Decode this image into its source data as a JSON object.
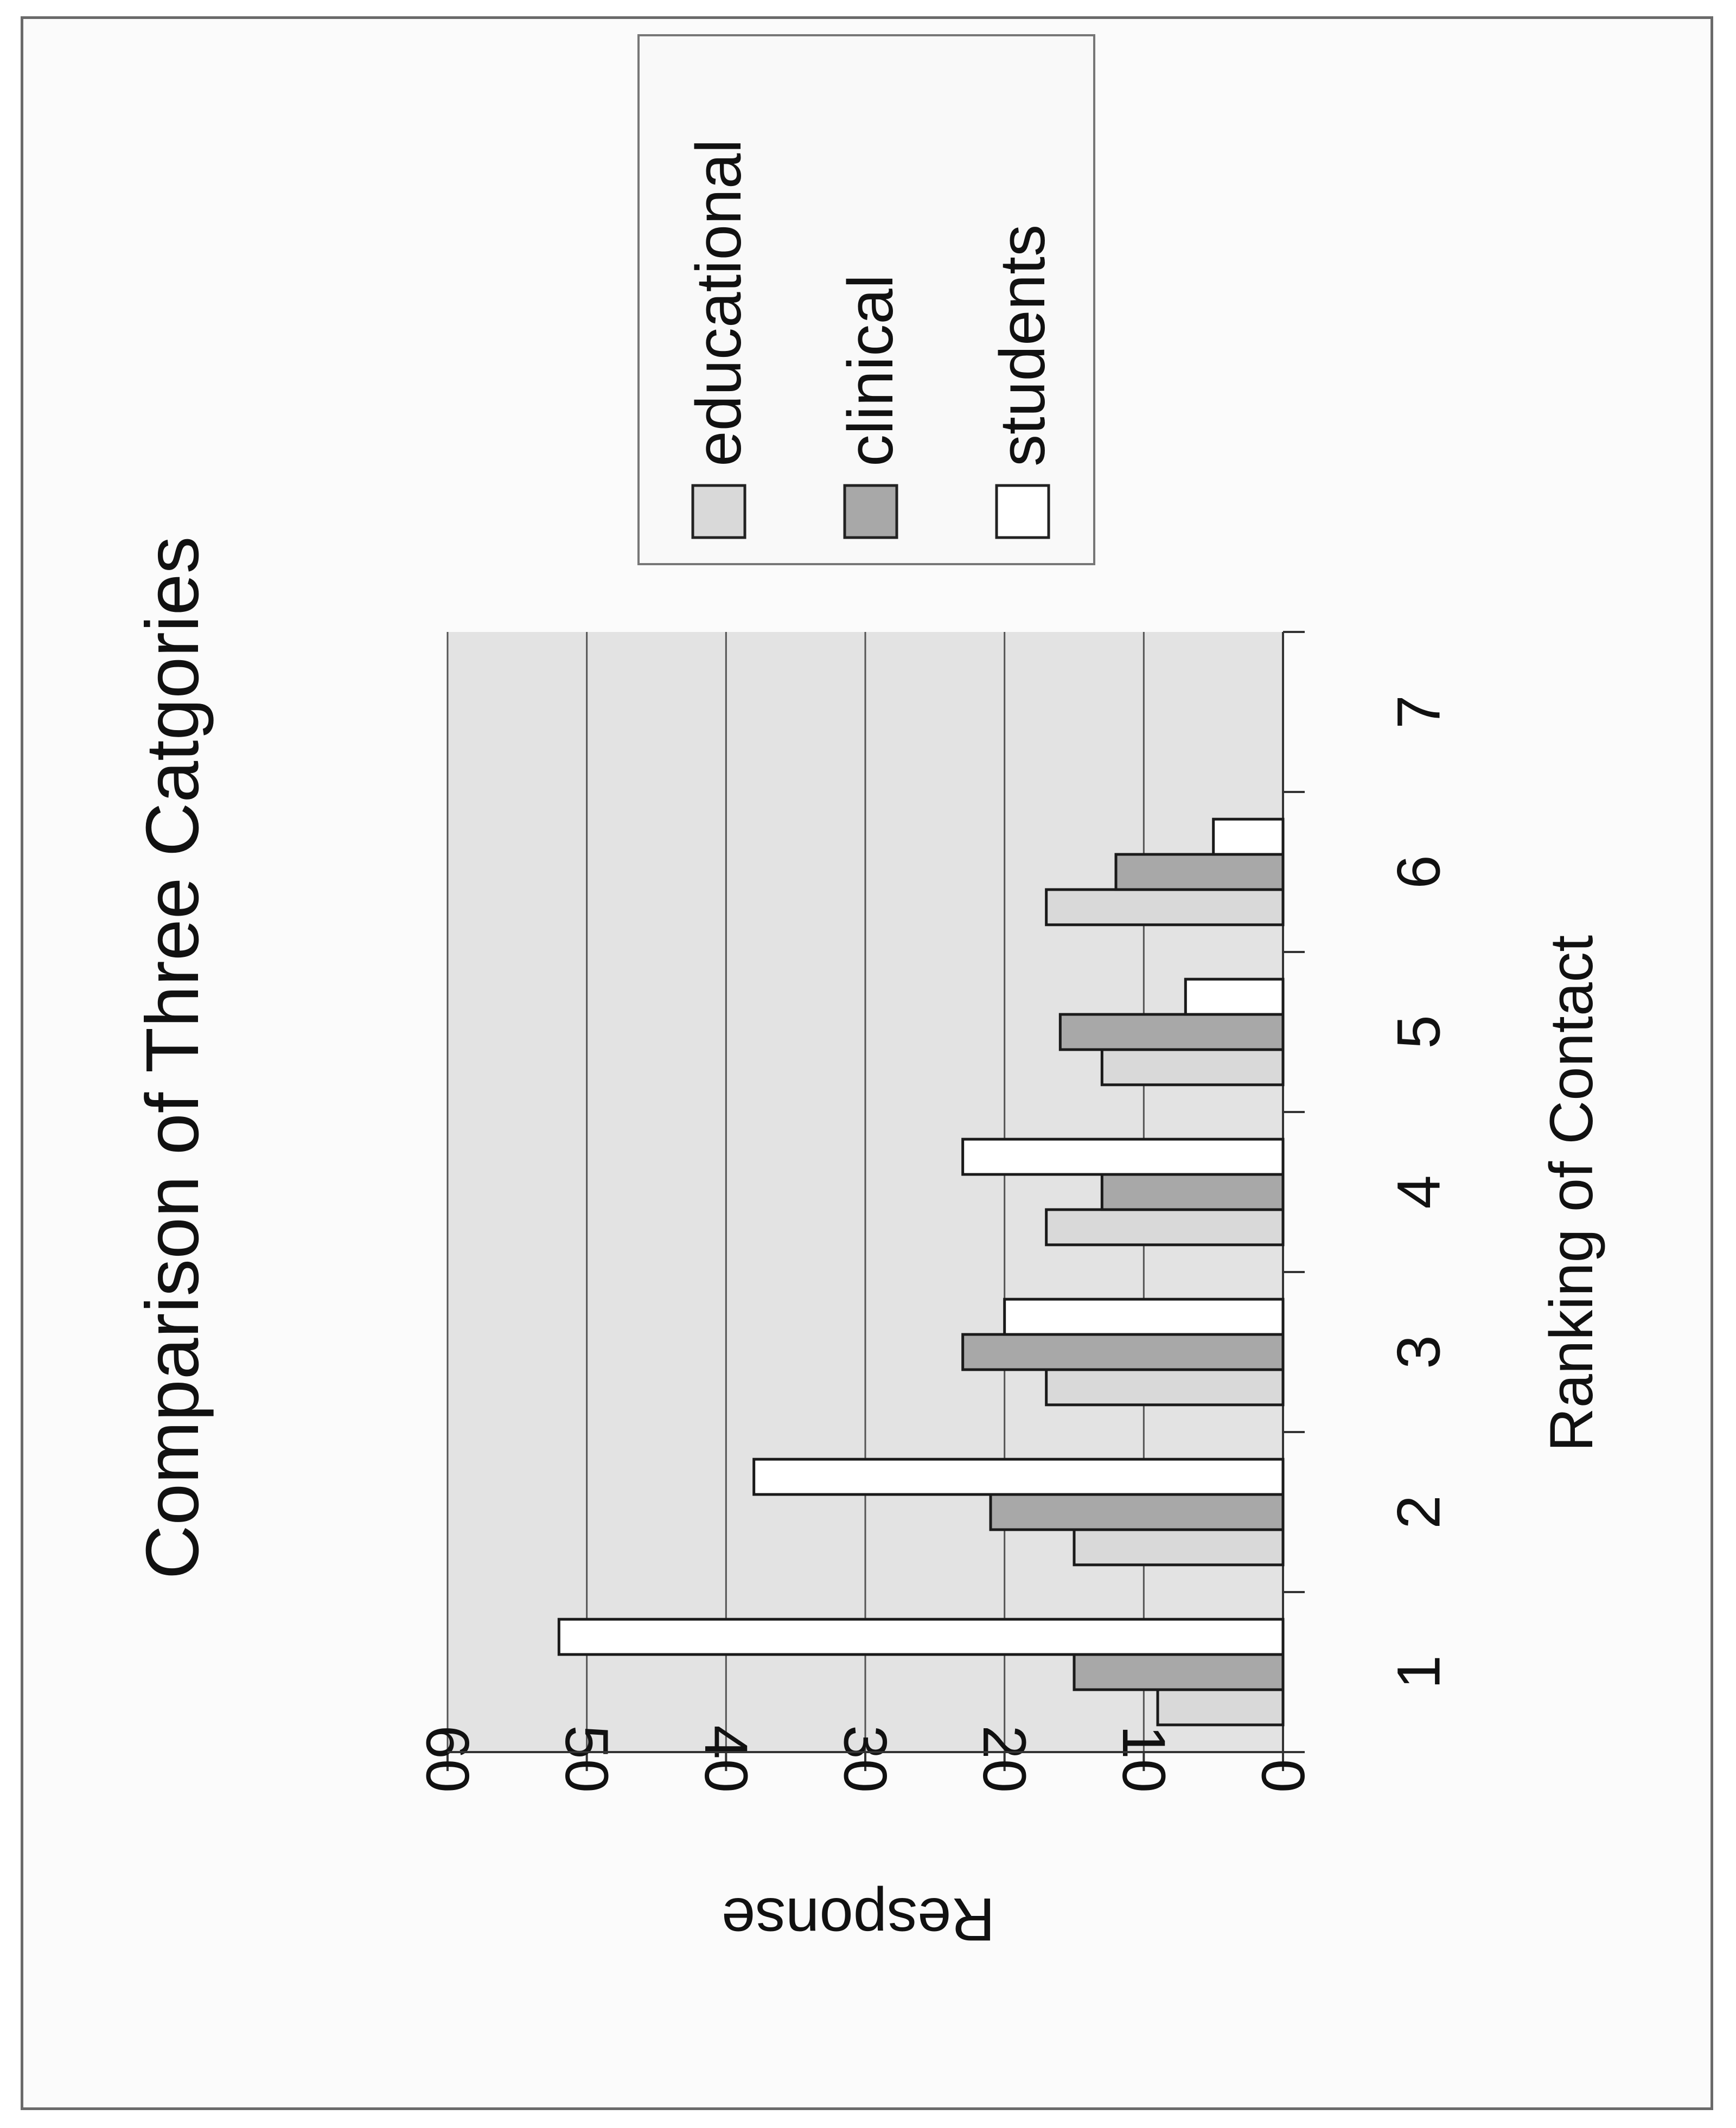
{
  "chart_data": {
    "type": "bar",
    "orientation": "rotated-90-clockwise",
    "title": "Comparison of Three Catgories",
    "xlabel": "Ranking of Contact",
    "ylabel": "Response",
    "categories": [
      "1",
      "2",
      "3",
      "4",
      "5",
      "6",
      "7"
    ],
    "ylim": [
      0,
      60
    ],
    "yticks": [
      "0",
      "10",
      "20",
      "30",
      "40",
      "50",
      "60"
    ],
    "grid": true,
    "legend_position": "top-right",
    "series": [
      {
        "name": "educational",
        "values": [
          9,
          15,
          17,
          17,
          13,
          17,
          0
        ],
        "color": "#d9d9d9"
      },
      {
        "name": "clinical",
        "values": [
          15,
          21,
          23,
          13,
          16,
          12,
          0
        ],
        "color": "#a8a8a8"
      },
      {
        "name": "students",
        "values": [
          52,
          38,
          20,
          23,
          7,
          5,
          0
        ],
        "color": "#ffffff"
      }
    ],
    "colors": {
      "plot_background": "#e3e3e3",
      "gridline": "#555555",
      "axis": "#333333"
    }
  }
}
